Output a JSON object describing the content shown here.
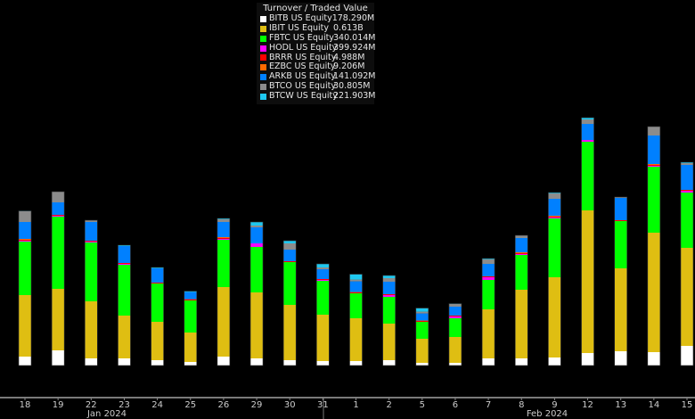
{
  "chart_data": {
    "type": "bar",
    "stacked": true,
    "title": "Turnover / Traded Value",
    "xlabel": "",
    "ylabel": "",
    "units": "USD millions (estimated, no y-axis shown)",
    "ylim": [
      0,
      2100
    ],
    "grid": false,
    "legend_position": "top-center",
    "categories": [
      "18",
      "19",
      "22",
      "23",
      "24",
      "25",
      "26",
      "29",
      "30",
      "31",
      "1",
      "2",
      "5",
      "6",
      "7",
      "8",
      "9",
      "12",
      "13",
      "14",
      "15"
    ],
    "month_labels": [
      "Jan 2024",
      "Feb 2024"
    ],
    "series": [
      {
        "name": "BITB US Equity",
        "legend_value": "178.290M",
        "color": "#ffffff",
        "values": [
          70,
          119,
          56,
          56,
          42,
          28,
          70,
          56,
          42,
          35,
          35,
          42,
          21,
          21,
          56,
          56,
          63,
          98,
          112,
          105,
          154
        ]
      },
      {
        "name": "IBIT US Equity",
        "legend_value": "0.613B",
        "color": "#dfbe12",
        "values": [
          483,
          483,
          448,
          336,
          301,
          231,
          546,
          518,
          434,
          364,
          336,
          287,
          189,
          203,
          385,
          539,
          630,
          1120,
          651,
          938,
          770
        ]
      },
      {
        "name": "FBTC US Equity",
        "legend_value": "340.014M",
        "color": "#00ff00",
        "values": [
          420,
          567,
          462,
          399,
          301,
          252,
          371,
          357,
          336,
          266,
          196,
          210,
          133,
          147,
          231,
          273,
          462,
          539,
          371,
          518,
          434
        ]
      },
      {
        "name": "HODL US Equity",
        "legend_value": "399.924M",
        "color": "#ff00ff",
        "values": [
          7,
          7,
          7,
          7,
          0,
          0,
          7,
          28,
          0,
          7,
          0,
          14,
          0,
          14,
          21,
          7,
          7,
          14,
          0,
          7,
          14
        ]
      },
      {
        "name": "BRRR US Equity",
        "legend_value": "4.988M",
        "color": "#ff0000",
        "values": [
          7,
          7,
          7,
          7,
          7,
          7,
          7,
          0,
          7,
          7,
          7,
          7,
          7,
          7,
          7,
          7,
          7,
          0,
          7,
          7,
          7
        ]
      },
      {
        "name": "EZBC US Equity",
        "legend_value": "9.206M",
        "color": "#ff6a00",
        "values": [
          7,
          0,
          0,
          0,
          0,
          3,
          7,
          0,
          0,
          0,
          3,
          0,
          3,
          0,
          0,
          7,
          7,
          0,
          0,
          7,
          0
        ]
      },
      {
        "name": "ARKB US Equity",
        "legend_value": "141.092M",
        "color": "#0080ff",
        "values": [
          133,
          98,
          147,
          133,
          112,
          56,
          119,
          126,
          91,
          77,
          84,
          98,
          56,
          70,
          98,
          112,
          133,
          126,
          175,
          224,
          196
        ]
      },
      {
        "name": "BTCO US Equity",
        "legend_value": "30.805M",
        "color": "#8c8c8c",
        "values": [
          84,
          84,
          14,
          0,
          0,
          0,
          21,
          14,
          49,
          14,
          14,
          28,
          14,
          21,
          35,
          21,
          42,
          35,
          7,
          70,
          14
        ]
      },
      {
        "name": "BTCW US Equity",
        "legend_value": "221.903M",
        "color": "#1ec8f0",
        "values": [
          3,
          0,
          0,
          7,
          7,
          7,
          7,
          28,
          21,
          28,
          42,
          21,
          28,
          3,
          7,
          0,
          7,
          14,
          0,
          0,
          7
        ]
      }
    ]
  }
}
